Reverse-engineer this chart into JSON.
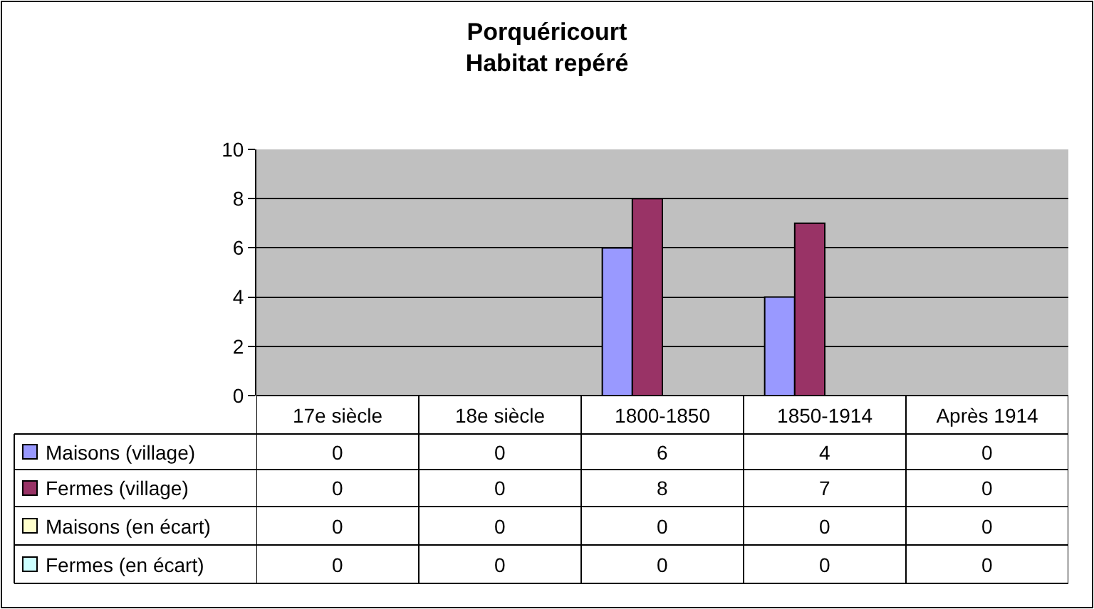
{
  "chart_data": {
    "type": "bar",
    "title": "Porquéricourt\nHabitat repéré",
    "categories": [
      "17e siècle",
      "18e siècle",
      "1800-1850",
      "1850-1914",
      "Après 1914"
    ],
    "series": [
      {
        "name": "Maisons (village)",
        "color": "#9999ff",
        "values": [
          0,
          0,
          6,
          4,
          0
        ]
      },
      {
        "name": "Fermes (village)",
        "color": "#993366",
        "values": [
          0,
          0,
          8,
          7,
          0
        ]
      },
      {
        "name": "Maisons (en écart)",
        "color": "#ffffcc",
        "values": [
          0,
          0,
          0,
          0,
          0
        ]
      },
      {
        "name": "Fermes (en écart)",
        "color": "#ccffff",
        "values": [
          0,
          0,
          0,
          0,
          0
        ]
      }
    ],
    "legend": "bottom left",
    "ylim": [
      0,
      10
    ],
    "yticks": [
      0,
      2,
      4,
      6,
      8,
      10
    ],
    "grid": "y",
    "data_labels": true
  }
}
